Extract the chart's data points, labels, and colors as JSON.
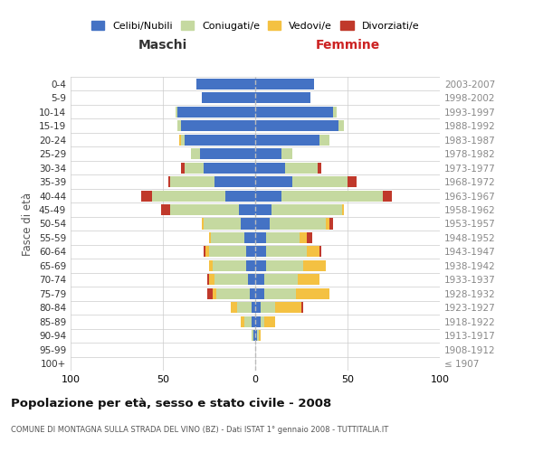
{
  "age_groups": [
    "100+",
    "95-99",
    "90-94",
    "85-89",
    "80-84",
    "75-79",
    "70-74",
    "65-69",
    "60-64",
    "55-59",
    "50-54",
    "45-49",
    "40-44",
    "35-39",
    "30-34",
    "25-29",
    "20-24",
    "15-19",
    "10-14",
    "5-9",
    "0-4"
  ],
  "birth_years": [
    "≤ 1907",
    "1908-1912",
    "1913-1917",
    "1918-1922",
    "1923-1927",
    "1928-1932",
    "1933-1937",
    "1938-1942",
    "1943-1947",
    "1948-1952",
    "1953-1957",
    "1958-1962",
    "1963-1967",
    "1968-1972",
    "1973-1977",
    "1978-1982",
    "1983-1987",
    "1988-1992",
    "1993-1997",
    "1998-2002",
    "2003-2007"
  ],
  "maschi_celibi": [
    0,
    0,
    1,
    2,
    2,
    3,
    4,
    5,
    5,
    6,
    8,
    9,
    16,
    22,
    28,
    30,
    38,
    40,
    42,
    29,
    32
  ],
  "maschi_coniugati": [
    0,
    0,
    1,
    4,
    8,
    18,
    18,
    18,
    20,
    18,
    20,
    37,
    40,
    24,
    10,
    5,
    2,
    2,
    1,
    0,
    0
  ],
  "maschi_vedovi": [
    0,
    0,
    0,
    2,
    3,
    2,
    3,
    2,
    2,
    1,
    1,
    0,
    0,
    0,
    0,
    0,
    1,
    0,
    0,
    0,
    0
  ],
  "maschi_divorziati": [
    0,
    0,
    0,
    0,
    0,
    3,
    1,
    0,
    1,
    0,
    0,
    5,
    6,
    1,
    2,
    0,
    0,
    0,
    0,
    0,
    0
  ],
  "femmine_celibi": [
    0,
    0,
    1,
    3,
    3,
    5,
    5,
    6,
    6,
    6,
    8,
    9,
    14,
    20,
    16,
    14,
    35,
    45,
    42,
    30,
    32
  ],
  "femmine_coniugati": [
    0,
    0,
    1,
    2,
    8,
    17,
    18,
    20,
    22,
    18,
    30,
    38,
    55,
    30,
    18,
    6,
    5,
    3,
    2,
    0,
    0
  ],
  "femmine_vedovi": [
    0,
    0,
    1,
    6,
    14,
    18,
    12,
    12,
    7,
    4,
    2,
    1,
    0,
    0,
    0,
    0,
    0,
    0,
    0,
    0,
    0
  ],
  "femmine_divorziati": [
    0,
    0,
    0,
    0,
    1,
    0,
    0,
    0,
    1,
    3,
    2,
    0,
    5,
    5,
    2,
    0,
    0,
    0,
    0,
    0,
    0
  ],
  "colors": {
    "celibi": "#4472c4",
    "coniugati": "#c5d9a0",
    "vedovi": "#f4c142",
    "divorziati": "#c0392b"
  },
  "title": "Popolazione per età, sesso e stato civile - 2008",
  "subtitle": "COMUNE DI MONTAGNA SULLA STRADA DEL VINO (BZ) - Dati ISTAT 1° gennaio 2008 - TUTTITALIA.IT",
  "xlabel_left": "Maschi",
  "xlabel_right": "Femmine",
  "ylabel_left": "Fasce di età",
  "xlim": 100,
  "background_color": "#ffffff",
  "grid_color": "#cccccc"
}
